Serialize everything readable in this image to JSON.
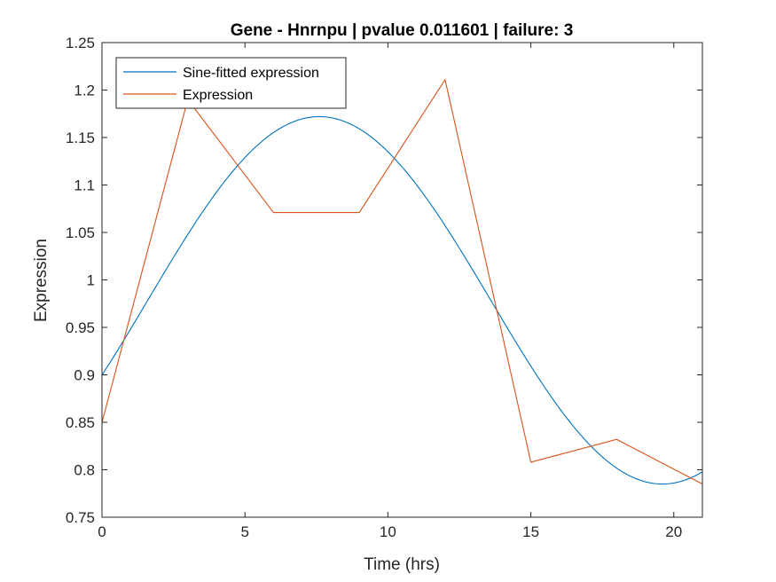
{
  "chart_data": {
    "type": "line",
    "title": "Gene - Hnrnpu | pvalue 0.011601 | failure: 3",
    "xlabel": "Time (hrs)",
    "ylabel": "Expression",
    "xlim": [
      0,
      21
    ],
    "ylim": [
      0.75,
      1.25
    ],
    "xticks": [
      0,
      5,
      10,
      15,
      20
    ],
    "xtick_labels": [
      "0",
      "5",
      "10",
      "15",
      "20"
    ],
    "yticks": [
      0.75,
      0.8,
      0.85,
      0.9,
      0.95,
      1.0,
      1.05,
      1.1,
      1.15,
      1.2,
      1.25
    ],
    "ytick_labels": [
      "0.75",
      "0.8",
      "0.85",
      "0.9",
      "0.95",
      "1",
      "1.05",
      "1.1",
      "1.15",
      "1.2",
      "1.25"
    ],
    "grid": false,
    "legend_position": "top-left",
    "series": [
      {
        "name": "Sine-fitted expression",
        "color": "#0072BD",
        "kind": "sine",
        "mean": 0.9785,
        "amplitude": 0.1935,
        "period": 24,
        "peak_time": 7.6,
        "x_range": [
          0,
          21
        ]
      },
      {
        "name": "Expression",
        "color": "#D95319",
        "kind": "polyline",
        "x": [
          0,
          3,
          6,
          9,
          12,
          15,
          18,
          21
        ],
        "y": [
          0.85,
          1.19,
          1.071,
          1.071,
          1.211,
          0.808,
          0.832,
          0.785
        ]
      }
    ]
  }
}
